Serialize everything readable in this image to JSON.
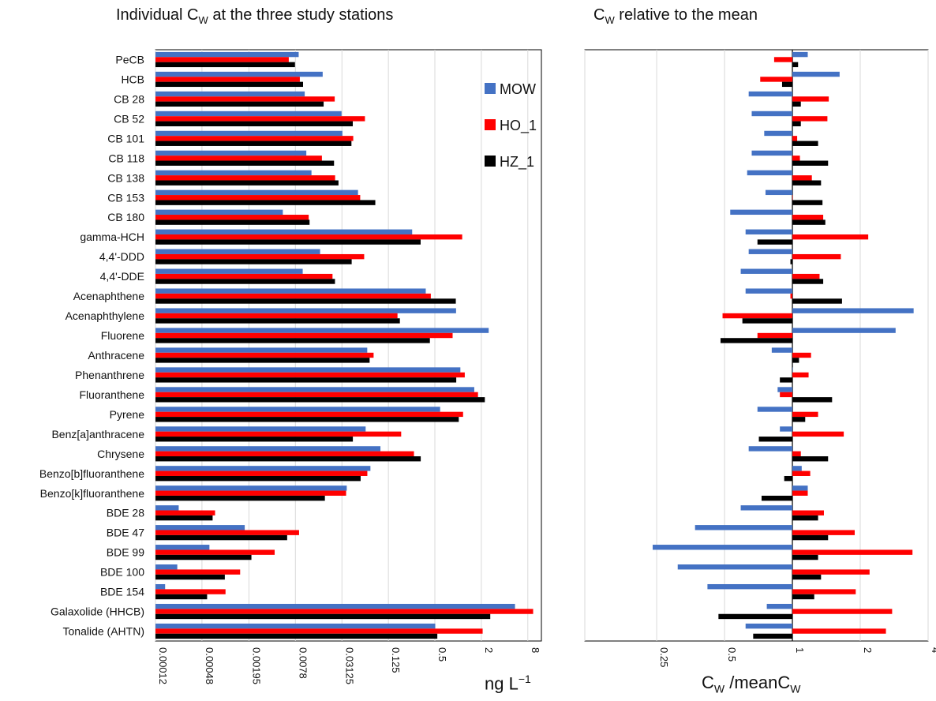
{
  "titles": {
    "left": {
      "pre": "Individual C",
      "sub": "W",
      "post": " at the three study stations"
    },
    "right": {
      "pre": "C",
      "sub": "W",
      "post": " relative to the mean"
    }
  },
  "xlabels": {
    "left": {
      "pre": "ng L",
      "sup": "−1"
    },
    "right": {
      "pre": "C",
      "sub": "W",
      "mid": " /meanC",
      "sub2": "W"
    }
  },
  "chart_data": [
    {
      "type": "bar",
      "orientation": "horizontal",
      "title": "Individual CW at the three study stations",
      "xlabel": "ng L−1",
      "xscale": "log2",
      "xlim": [
        0.00012,
        12
      ],
      "xticks": [
        "0.00012",
        "0.00048",
        "0.00195",
        "0.0078",
        "0.03125",
        "0.125",
        "0.5",
        "2",
        "8"
      ],
      "grid": "vertical",
      "legend_position": "top-right",
      "categories": [
        "PeCB",
        "HCB",
        "CB 28",
        "CB 52",
        "CB 101",
        "CB 118",
        "CB 138",
        "CB 153",
        "CB 180",
        "gamma-HCH",
        "4,4'-DDD",
        "4,4'-DDE",
        "Acenaphthene",
        "Acenaphthylene",
        "Fluorene",
        "Anthracene",
        "Phenanthrene",
        "Fluoranthene",
        "Pyrene",
        "Benz[a]anthracene",
        "Chrysene",
        "Benzo[b]fluoranthene",
        "Benzo[k]fluoranthene",
        "BDE 28",
        "BDE 47",
        "BDE 99",
        "BDE 100",
        "BDE 154",
        "Galaxolide (HHCB)",
        "Tonalide (AHTN)"
      ],
      "series": [
        {
          "name": "MOW",
          "color": "#4472C4",
          "values": [
            0.0086,
            0.0176,
            0.0103,
            0.0309,
            0.0317,
            0.0108,
            0.0126,
            0.0505,
            0.00536,
            0.254,
            0.0163,
            0.0097,
            0.381,
            0.941,
            2.49,
            0.0665,
            1.07,
            1.62,
            0.585,
            0.0634,
            0.0986,
            0.0731,
            0.0361,
            0.00024,
            0.00172,
            0.0006,
            0.00023,
            0.00016,
            5.46,
            0.506
          ]
        },
        {
          "name": "HO_1",
          "color": "#FF0000",
          "values": [
            0.0064,
            0.0089,
            0.0252,
            0.0621,
            0.0438,
            0.0172,
            0.0255,
            0.0539,
            0.0116,
            1.13,
            0.0607,
            0.0236,
            0.443,
            0.164,
            0.849,
            0.0804,
            1.22,
            1.81,
            1.16,
            0.183,
            0.268,
            0.0667,
            0.0354,
            0.00071,
            0.0087,
            0.0042,
            0.0015,
            0.00097,
            9.38,
            2.08
          ]
        },
        {
          "name": "HZ_1",
          "color": "#000000",
          "values": [
            0.0077,
            0.0098,
            0.0181,
            0.0432,
            0.0415,
            0.0247,
            0.0282,
            0.0846,
            0.0119,
            0.327,
            0.0418,
            0.0254,
            0.934,
            0.176,
            0.431,
            0.0714,
            0.946,
            2.22,
            1.02,
            0.0433,
            0.328,
            0.0546,
            0.0188,
            0.00066,
            0.0061,
            0.0021,
            0.00095,
            0.00056,
            2.61,
            0.538
          ]
        }
      ]
    },
    {
      "type": "bar",
      "orientation": "horizontal",
      "title": "CW relative to the mean",
      "xlabel": "CW /meanCW",
      "xscale": "log2",
      "xlim": [
        0.12,
        4
      ],
      "xticks": [
        "0.25",
        "0.5",
        "1",
        "2",
        "4"
      ],
      "baseline": 1,
      "grid": "vertical",
      "categories": [
        "PeCB",
        "HCB",
        "CB 28",
        "CB 52",
        "CB 101",
        "CB 118",
        "CB 138",
        "CB 153",
        "CB 180",
        "gamma-HCH",
        "4,4'-DDD",
        "4,4'-DDE",
        "Acenaphthene",
        "Acenaphthylene",
        "Fluorene",
        "Anthracene",
        "Phenanthrene",
        "Fluoranthene",
        "Pyrene",
        "Benz[a]anthracene",
        "Chrysene",
        "Benzo[b]fluoranthene",
        "Benzo[k]fluoranthene",
        "BDE 28",
        "BDE 47",
        "BDE 99",
        "BDE 100",
        "BDE 154",
        "Galaxolide (HHCB)",
        "Tonalide (AHTN)"
      ],
      "series": [
        {
          "name": "MOW",
          "color": "#4472C4",
          "values": [
            1.17,
            1.62,
            0.64,
            0.66,
            0.75,
            0.66,
            0.63,
            0.76,
            0.53,
            0.62,
            0.64,
            0.59,
            0.62,
            3.45,
            2.87,
            0.81,
            1,
            0.86,
            0.7,
            0.88,
            0.64,
            1.1,
            1.17,
            0.59,
            0.37,
            0.24,
            0.31,
            0.42,
            0.77,
            0.62
          ]
        },
        {
          "name": "HO_1",
          "color": "#FF0000",
          "values": [
            0.83,
            0.72,
            1.45,
            1.43,
            1.05,
            1.08,
            1.22,
            1,
            1.37,
            2.17,
            1.64,
            1.32,
            0.98,
            0.49,
            0.7,
            1.21,
            1.18,
            0.88,
            1.3,
            1.69,
            1.09,
            1.2,
            1.17,
            1.38,
            1.89,
            3.41,
            2.2,
            1.91,
            2.77,
            2.6
          ]
        },
        {
          "name": "HZ_1",
          "color": "#000000",
          "values": [
            1.06,
            0.9,
            1.09,
            1.09,
            1.3,
            1.44,
            1.34,
            1.36,
            1.4,
            0.7,
            0.98,
            1.37,
            1.66,
            0.6,
            0.48,
            1.07,
            0.88,
            1.5,
            1.14,
            0.71,
            1.44,
            0.92,
            0.73,
            1.3,
            1.44,
            1.3,
            1.34,
            1.25,
            0.47,
            0.67
          ]
        }
      ]
    }
  ]
}
